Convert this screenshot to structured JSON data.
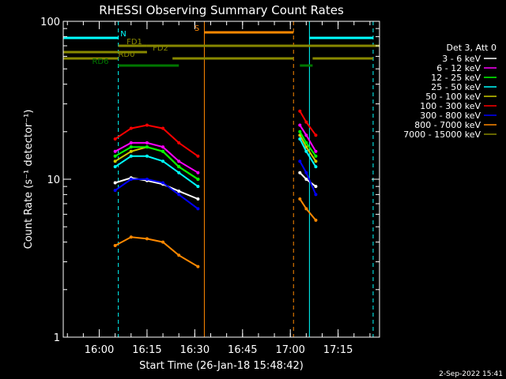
{
  "chart_data": {
    "type": "line",
    "title": "RHESSI Observing Summary Count Rates",
    "xlabel": "Start Time (26-Jan-18 15:48:42)",
    "ylabel": "Count Rate (s⁻¹ detector⁻¹)",
    "yscale": "log",
    "ylim": [
      1,
      100
    ],
    "y_ticks": [
      {
        "value": 1,
        "label": "1"
      },
      {
        "value": 10,
        "label": "10"
      },
      {
        "value": 100,
        "label": "100"
      }
    ],
    "x_ticks": [
      "16:00",
      "16:15",
      "16:30",
      "16:45",
      "17:00",
      "17:15"
    ],
    "xlim": [
      "15:48:42",
      "17:28:00"
    ],
    "legend": {
      "title": "Det 3, Att 0",
      "placement": "right"
    },
    "series": [
      {
        "name": "3 - 6 keV",
        "color": "#ffffff",
        "segments": [
          {
            "x": [
              "16:05",
              "16:10",
              "16:15",
              "16:20",
              "16:25",
              "16:31"
            ],
            "y": [
              9.5,
              10.2,
              9.8,
              9.3,
              8.4,
              7.5
            ]
          },
          {
            "x": [
              "17:03",
              "17:05",
              "17:08"
            ],
            "y": [
              11,
              10,
              9
            ]
          }
        ]
      },
      {
        "name": "6 - 12 keV",
        "color": "#ff00ff",
        "segments": [
          {
            "x": [
              "16:05",
              "16:10",
              "16:15",
              "16:20",
              "16:25",
              "16:31"
            ],
            "y": [
              15,
              17,
              17,
              16,
              13,
              11
            ]
          },
          {
            "x": [
              "17:03",
              "17:05",
              "17:08"
            ],
            "y": [
              22,
              19,
              15
            ]
          }
        ]
      },
      {
        "name": "12 - 25 keV",
        "color": "#00ff00",
        "segments": [
          {
            "x": [
              "16:05",
              "16:10",
              "16:15",
              "16:20",
              "16:25",
              "16:31"
            ],
            "y": [
              14,
              16,
              16,
              15,
              12,
              10
            ]
          },
          {
            "x": [
              "17:03",
              "17:05",
              "17:08"
            ],
            "y": [
              20,
              17,
              14
            ]
          }
        ]
      },
      {
        "name": "25 - 50 keV",
        "color": "#00ffff",
        "segments": [
          {
            "x": [
              "16:05",
              "16:10",
              "16:15",
              "16:20",
              "16:25",
              "16:31"
            ],
            "y": [
              12,
              14,
              14,
              13,
              11,
              9
            ]
          },
          {
            "x": [
              "17:03",
              "17:05",
              "17:08"
            ],
            "y": [
              18,
              15,
              12
            ]
          }
        ]
      },
      {
        "name": "50 - 100 keV",
        "color": "#cccc00",
        "segments": [
          {
            "x": [
              "16:05",
              "16:10",
              "16:15",
              "16:20",
              "16:25",
              "16:31"
            ],
            "y": [
              13,
              15,
              16,
              15,
              12,
              10
            ]
          },
          {
            "x": [
              "17:03",
              "17:05",
              "17:08"
            ],
            "y": [
              19,
              16,
              13
            ]
          }
        ]
      },
      {
        "name": "100 - 300 keV",
        "color": "#ff0000",
        "segments": [
          {
            "x": [
              "16:05",
              "16:10",
              "16:15",
              "16:20",
              "16:25",
              "16:31"
            ],
            "y": [
              18,
              21,
              22,
              21,
              17,
              14
            ]
          },
          {
            "x": [
              "17:03",
              "17:05",
              "17:08"
            ],
            "y": [
              27,
              23,
              19
            ]
          }
        ]
      },
      {
        "name": "300 - 800 keV",
        "color": "#0000ff",
        "segments": [
          {
            "x": [
              "16:05",
              "16:10",
              "16:15",
              "16:20",
              "16:25",
              "16:31"
            ],
            "y": [
              8.5,
              10,
              10,
              9.5,
              8,
              6.5
            ]
          },
          {
            "x": [
              "17:03",
              "17:05",
              "17:08"
            ],
            "y": [
              13,
              11,
              8
            ]
          }
        ]
      },
      {
        "name": "800 - 7000 keV",
        "color": "#ff8800",
        "segments": [
          {
            "x": [
              "16:05",
              "16:10",
              "16:15",
              "16:20",
              "16:25",
              "16:31"
            ],
            "y": [
              3.8,
              4.3,
              4.2,
              4.0,
              3.3,
              2.8
            ]
          },
          {
            "x": [
              "17:03",
              "17:05",
              "17:08"
            ],
            "y": [
              7.5,
              6.5,
              5.5
            ]
          }
        ]
      },
      {
        "name": "7000 - 15000 keV",
        "color": "#888800",
        "segments": []
      }
    ],
    "flags": [
      {
        "label": "N",
        "color": "#00ffff",
        "segments": [
          [
            "15:48:42",
            "16:06"
          ],
          [
            "17:06",
            "17:26"
          ]
        ]
      },
      {
        "label": "S",
        "color": "#ff8800",
        "segments": [
          [
            "16:33",
            "17:01"
          ]
        ]
      },
      {
        "label": "FD1",
        "color": "#888800",
        "segments": [
          [
            "16:06",
            "16:15"
          ],
          [
            "16:15",
            "17:28"
          ]
        ]
      },
      {
        "label": "FD2",
        "color": "#888800",
        "segments": [
          [
            "15:48:42",
            "16:15"
          ]
        ]
      },
      {
        "label": "RD0",
        "color": "#888800",
        "segments": [
          [
            "15:48:42",
            "16:06"
          ],
          [
            "16:23",
            "17:01"
          ],
          [
            "17:07",
            "17:26"
          ]
        ]
      },
      {
        "label": "RD6",
        "color": "#007700",
        "segments": [
          [
            "16:06",
            "16:25"
          ],
          [
            "17:03",
            "17:07"
          ]
        ]
      }
    ],
    "vertical_markers": [
      {
        "time": "15:48:42",
        "color": "#00ffff",
        "style": "solid"
      },
      {
        "time": "16:06",
        "color": "#00ffff",
        "style": "dashed"
      },
      {
        "time": "16:33",
        "color": "#ff8800",
        "style": "solid"
      },
      {
        "time": "17:01",
        "color": "#ff8800",
        "style": "dashed"
      },
      {
        "time": "17:06",
        "color": "#00ffff",
        "style": "solid"
      },
      {
        "time": "17:26",
        "color": "#00ffff",
        "style": "dashed"
      }
    ],
    "footer": "2-Sep-2022 15:41"
  }
}
